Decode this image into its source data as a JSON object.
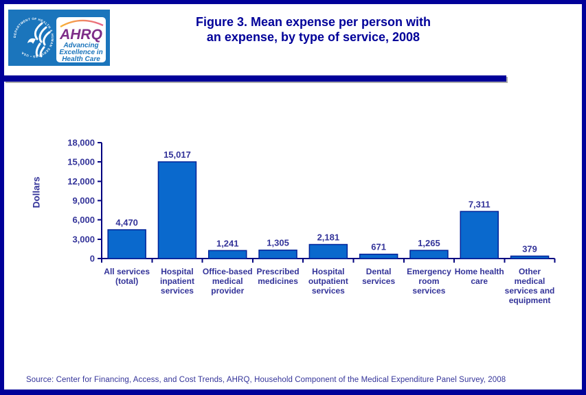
{
  "header": {
    "title_line1": "Figure 3. Mean expense per person with",
    "title_line2": "an expense, by type of service, 2008",
    "logo": {
      "hhs_seal_text": "DEPARTMENT OF HEALTH & HUMAN SERVICES • USA",
      "ahrq_acronym": "AHRQ",
      "tagline_line1": "Advancing",
      "tagline_line2": "Excellence in",
      "tagline_line3": "Health Care"
    }
  },
  "chart_data": {
    "type": "bar",
    "title": "Figure 3. Mean expense per person with an expense, by type of service, 2008",
    "xlabel": "",
    "ylabel": "Dollars",
    "ylim": [
      0,
      18000
    ],
    "ytick_values": [
      0,
      3000,
      6000,
      9000,
      12000,
      15000,
      18000
    ],
    "ytick_labels": [
      "0",
      "3,000",
      "6,000",
      "9,000",
      "12,000",
      "15,000",
      "18,000"
    ],
    "categories": [
      "All services (total)",
      "Hospital inpatient services",
      "Office-based medical provider",
      "Prescribed medicines",
      "Hospital outpatient services",
      "Dental services",
      "Emergency room services",
      "Home health care",
      "Other medical services and equipment"
    ],
    "values": [
      4470,
      15017,
      1241,
      1305,
      2181,
      671,
      1265,
      7311,
      379
    ],
    "value_labels": [
      "4,470",
      "15,017",
      "1,241",
      "1,305",
      "2,181",
      "671",
      "1,265",
      "7,311",
      "379"
    ],
    "grid": false,
    "legend": null,
    "bar_color": "#0a69cd",
    "bar_border_color": "#002299"
  },
  "footer": {
    "source": "Source: Center for Financing, Access, and Cost Trends, AHRQ, Household Component of the Medical Expenditure Panel Survey, 2008"
  },
  "colors": {
    "frame_navy": "#000099",
    "axis_text": "#333399",
    "axis_line": "#000080",
    "logo_blue": "#1b75bc",
    "ahrq_purple": "#7d2d88"
  }
}
